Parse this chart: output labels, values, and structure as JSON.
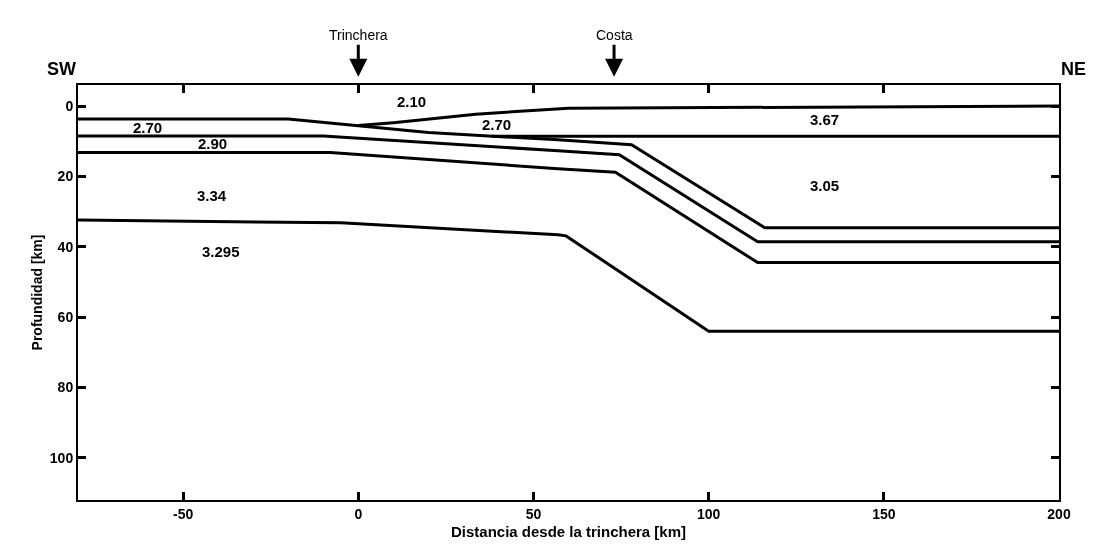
{
  "chart_data": {
    "type": "line",
    "xlabel": "Distancia desde la trinchera [km]",
    "ylabel": "Profundidad [km]",
    "xlim": [
      -80,
      200
    ],
    "xticks": [
      -50,
      0,
      50,
      100,
      150,
      200
    ],
    "ylim": [
      112,
      -6
    ],
    "yticks": [
      0,
      20,
      40,
      60,
      80,
      100
    ],
    "marker": "none",
    "line_style": "solid",
    "series": [
      {
        "color": "#000000",
        "x": [
          0,
          10,
          33.5,
          60,
          200
        ],
        "values": [
          5.5,
          4.7,
          2.3,
          0.6,
          0
        ]
      },
      {
        "color": "#000000",
        "x": [
          38,
          200
        ],
        "values": [
          8.6,
          8.6
        ]
      },
      {
        "color": "#000000",
        "x": [
          -80,
          -20,
          20,
          57,
          78,
          116,
          200
        ],
        "values": [
          3.7,
          3.7,
          7.5,
          9.6,
          11,
          34.6,
          34.6
        ]
      },
      {
        "color": "#000000",
        "x": [
          -80,
          -10,
          57,
          74.5,
          114,
          200
        ],
        "values": [
          8.5,
          8.5,
          12.7,
          13.8,
          38.6,
          38.6
        ]
      },
      {
        "color": "#000000",
        "x": [
          -80,
          -8,
          57,
          73.4,
          114,
          200
        ],
        "values": [
          13.2,
          13.2,
          17.8,
          18.8,
          44.5,
          44.5
        ]
      },
      {
        "color": "#000000",
        "x": [
          -80,
          -5,
          57,
          59.3,
          100,
          200
        ],
        "values": [
          32.4,
          33.2,
          36.6,
          36.9,
          64,
          64
        ]
      }
    ],
    "annotations": [
      "SW",
      "NE",
      {
        "text": "Trinchera",
        "x": 0
      },
      {
        "text": "Costa",
        "x": 73
      },
      "2.70",
      "2.90",
      "3.34",
      "3.295",
      "2.10",
      "2.70",
      "3.67",
      "3.05"
    ]
  }
}
